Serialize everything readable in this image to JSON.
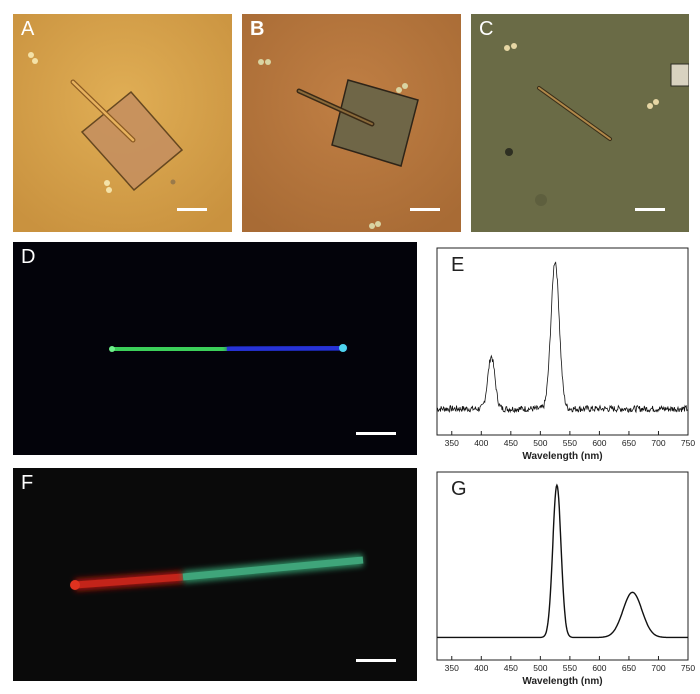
{
  "panels": {
    "A": {
      "label": "A"
    },
    "B": {
      "label": "B"
    },
    "C": {
      "label": "C"
    },
    "D": {
      "label": "D"
    },
    "E": {
      "label": "E"
    },
    "F": {
      "label": "F"
    },
    "G": {
      "label": "G"
    }
  },
  "colors": {
    "A_bg": "#d8a44a",
    "B_bg": "#b9773d",
    "C_bg": "#6a6b46",
    "D_bg": "#03030a",
    "F_bg": "#0a0a0a",
    "green_emission": "#3ccf5a",
    "blue_emission": "#2733d6",
    "red_emission": "#d0221a"
  },
  "chart_data": [
    {
      "type": "line",
      "panel": "E",
      "xlabel": "Wavelength (nm)",
      "ylabel": "",
      "xlim": [
        325,
        750
      ],
      "x_ticks": [
        350,
        400,
        450,
        500,
        550,
        600,
        650,
        700,
        750
      ],
      "series": [
        {
          "peaks": [
            {
              "center": 417,
              "height": 0.42
            },
            {
              "center": 525,
              "height": 0.93
            }
          ],
          "baseline": 0.14
        }
      ]
    },
    {
      "type": "line",
      "panel": "G",
      "xlabel": "Wavelength (nm)",
      "ylabel": "",
      "xlim": [
        325,
        750
      ],
      "x_ticks": [
        350,
        400,
        450,
        500,
        550,
        600,
        650,
        700,
        750
      ],
      "series": [
        {
          "peaks": [
            {
              "center": 528,
              "height": 0.93
            },
            {
              "center": 656,
              "height": 0.36
            }
          ],
          "baseline": 0.12
        }
      ]
    }
  ]
}
